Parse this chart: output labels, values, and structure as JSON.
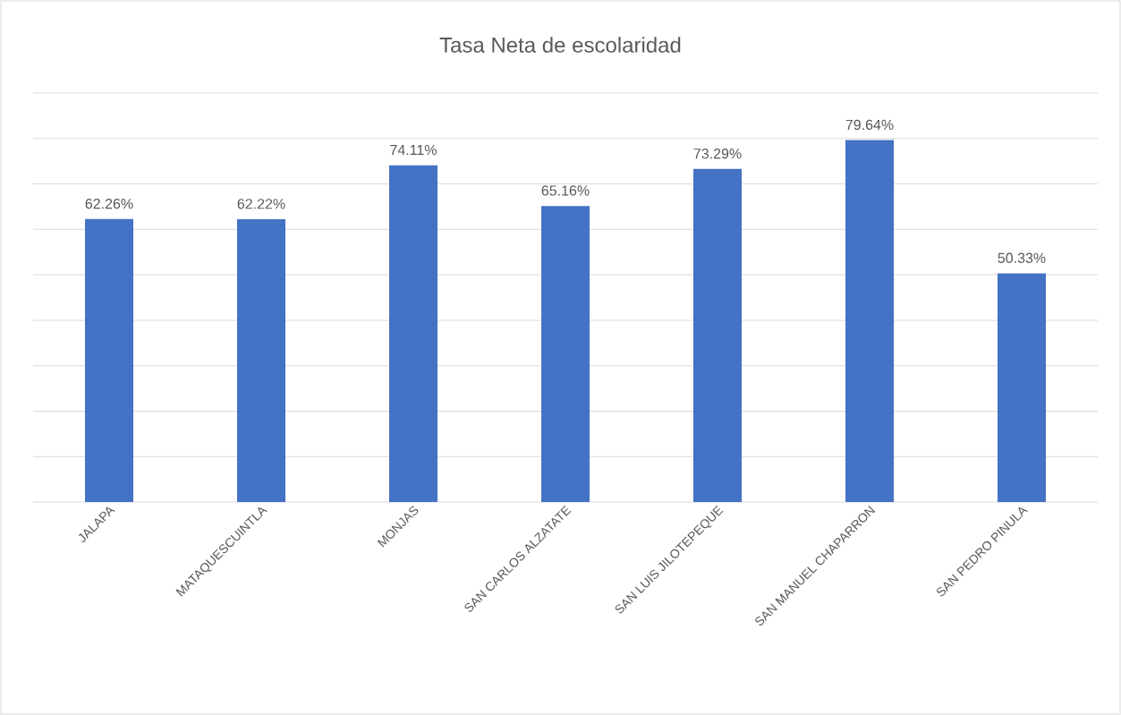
{
  "chart_data": {
    "type": "bar",
    "title": "Tasa Neta de escolaridad",
    "categories": [
      "JALAPA",
      "MATAQUESCUINTLA",
      "MONJAS",
      "SAN CARLOS ALZATATE",
      "SAN LUIS JILOTEPEQUE",
      "SAN MANUEL CHAPARRON",
      "SAN PEDRO PINULA"
    ],
    "values": [
      62.26,
      62.22,
      74.11,
      65.16,
      73.29,
      79.64,
      50.33
    ],
    "value_labels": [
      "62.26%",
      "62.22%",
      "74.11%",
      "65.16%",
      "73.29%",
      "79.64%",
      "50.33%"
    ],
    "color": "#4472c4",
    "ylim": [
      0,
      90
    ],
    "yticks": [
      {
        "value": 0,
        "label": null
      },
      {
        "value": 10,
        "label": null
      },
      {
        "value": 20,
        "label": null
      },
      {
        "value": 30,
        "label": null
      },
      {
        "value": 40,
        "label": null
      },
      {
        "value": 50,
        "label": null
      },
      {
        "value": 60,
        "label": null
      },
      {
        "value": 70,
        "label": null
      },
      {
        "value": 80,
        "label": null
      },
      {
        "value": 90,
        "label": null
      }
    ],
    "grid": "y",
    "tick_labels": "x"
  }
}
